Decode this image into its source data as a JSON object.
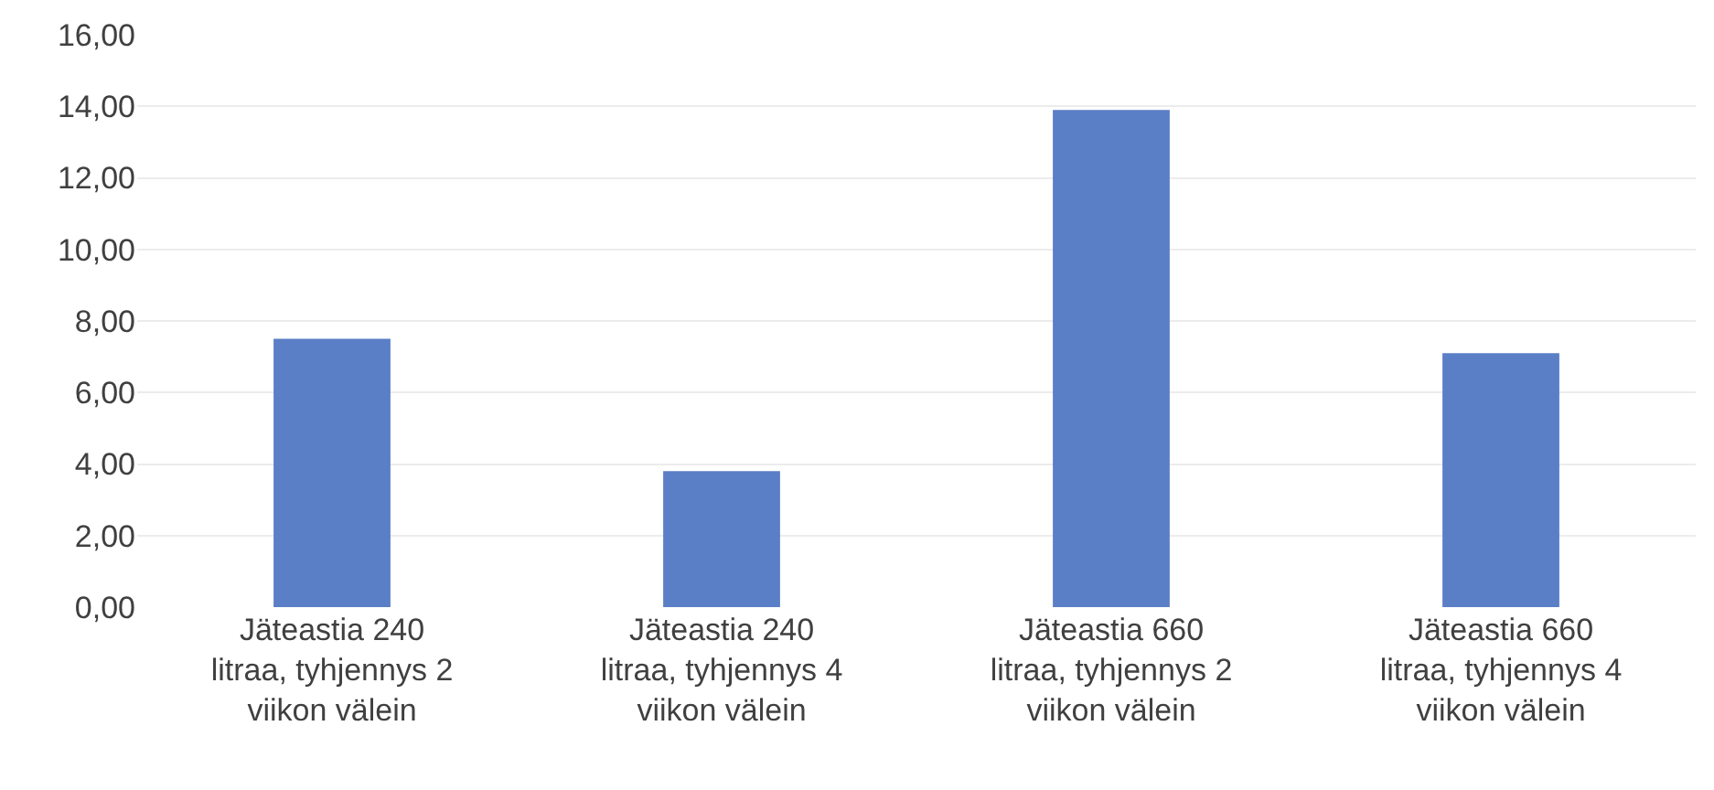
{
  "chart_data": {
    "type": "bar",
    "categories": [
      "Jäteastia 240 litraa, tyhjennys 2 viikon välein",
      "Jäteastia 240 litraa, tyhjennys 4 viikon välein",
      "Jäteastia 660 litraa, tyhjennys 2 viikon välein",
      "Jäteastia 660 litraa, tyhjennys 4 viikon välein"
    ],
    "values": [
      7.5,
      3.8,
      13.9,
      7.1
    ],
    "color": "#5b7fc6",
    "ylim": [
      0,
      16
    ],
    "yticks": [
      {
        "value": 0,
        "label": "0,00"
      },
      {
        "value": 2,
        "label": "2,00"
      },
      {
        "value": 4,
        "label": "4,00"
      },
      {
        "value": 6,
        "label": "6,00"
      },
      {
        "value": 8,
        "label": "8,00"
      },
      {
        "value": 10,
        "label": "10,00"
      },
      {
        "value": 12,
        "label": "12,00"
      },
      {
        "value": 14,
        "label": "14,00"
      },
      {
        "value": 16,
        "label": "16,00"
      }
    ],
    "grid": "y"
  }
}
